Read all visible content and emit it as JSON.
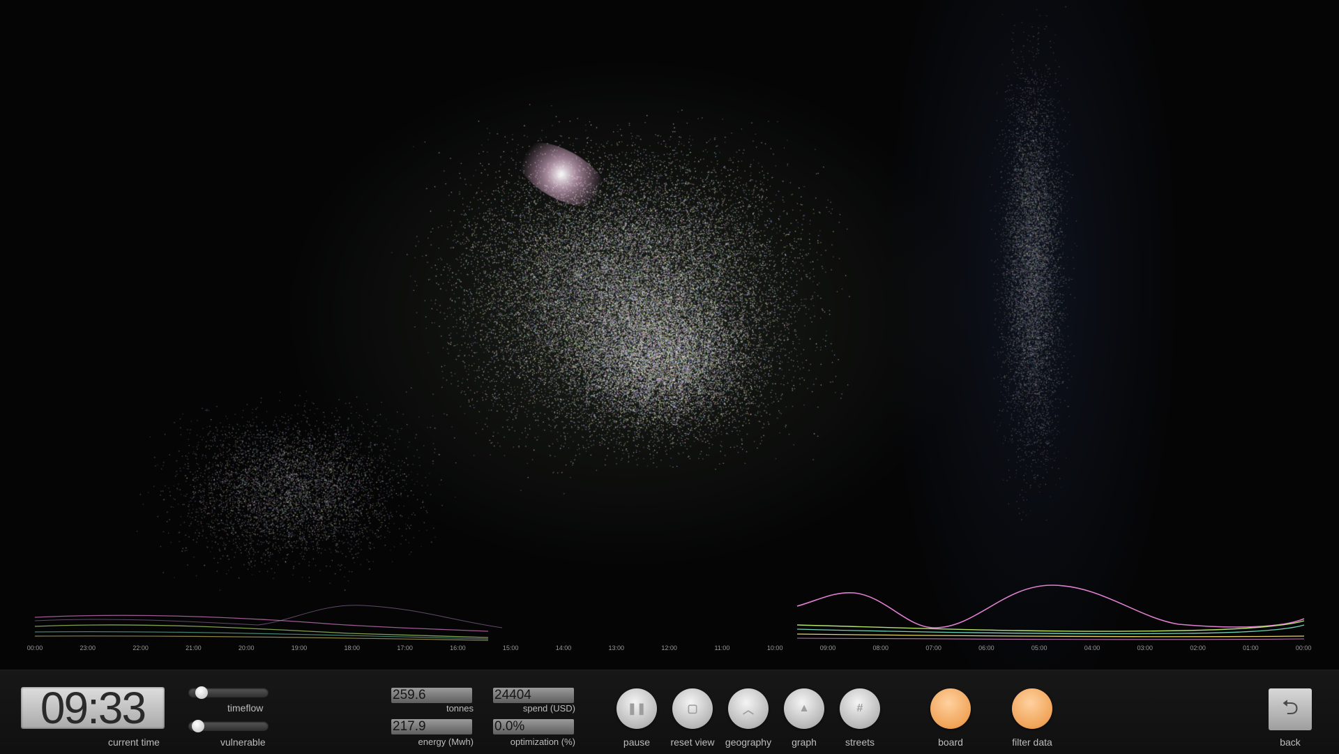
{
  "timeline": {
    "left_ticks": [
      "00:00",
      "23:00",
      "22:00",
      "21:00",
      "20:00",
      "19:00",
      "18:00",
      "17:00",
      "16:00",
      "15:00",
      "14:00",
      "13:00",
      "12:00",
      "11:00",
      "10:00"
    ],
    "right_ticks": [
      "09:00",
      "08:00",
      "07:00",
      "06:00",
      "05:00",
      "04:00",
      "03:00",
      "02:00",
      "01:00",
      "00:00"
    ]
  },
  "hud": {
    "current_time": "09:33",
    "current_time_label": "current time",
    "timeflow_label": "timeflow",
    "vulnerable_label": "vulnerable",
    "timeflow_level": 0.1,
    "vulnerable_level": 0.05,
    "stats": {
      "tonnes_value": "259.6",
      "tonnes_label": "tonnes",
      "spend_value": "24404",
      "spend_label": "spend (USD)",
      "energy_value": "217.9",
      "energy_label": "energy (Mwh)",
      "optimization_value": "0.0%",
      "optimization_label": "optimization (%)"
    },
    "buttons": {
      "pause": "pause",
      "reset_view": "reset view",
      "geography": "geography",
      "graph": "graph",
      "streets": "streets",
      "board": "board",
      "filter_data": "filter data",
      "back": "back"
    }
  },
  "colors": {
    "accent_orange": "#f0a458",
    "line_pink": "#e07fd0",
    "line_green": "#b7e26a",
    "line_teal": "#6fd3b8",
    "line_yellow": "#e6d56a"
  }
}
